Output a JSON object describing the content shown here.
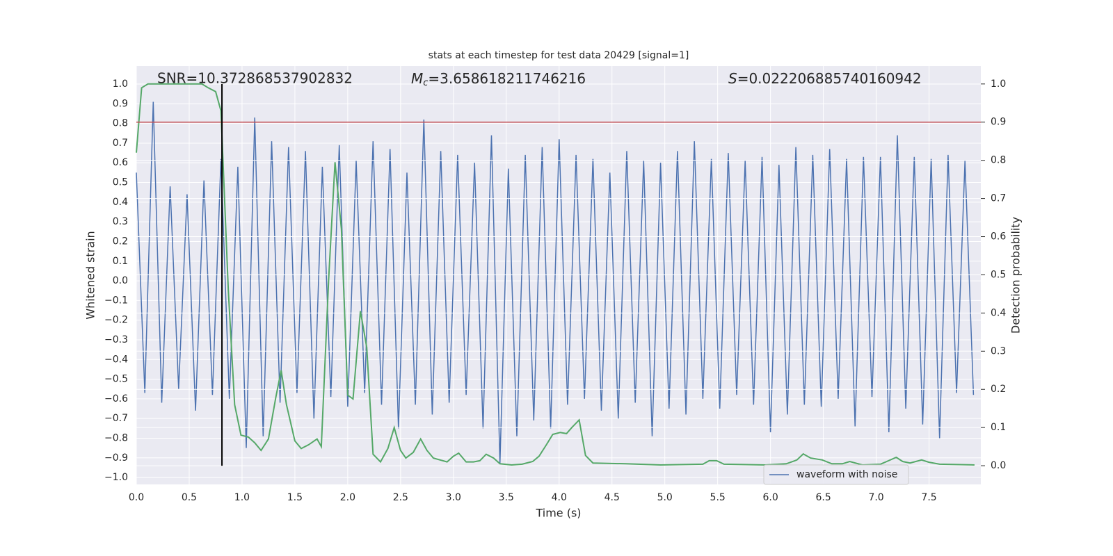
{
  "chart_data": {
    "type": "line",
    "title": "stats at each timestep for test data 20429 [signal=1]",
    "xlabel": "Time (s)",
    "ylabel": "Whitened strain",
    "y2label": "Detection probability",
    "annotations": {
      "snr": "SNR=10.372868537902832",
      "mc": {
        "symbol": "M",
        "subscript": "c",
        "text": "=3.658618211746216"
      },
      "s": {
        "symbol": "S",
        "text": "=0.022206885740160942"
      }
    },
    "xlim": [
      0,
      7.99
    ],
    "ylim": [
      -1.035,
      1.092
    ],
    "y2lim": [
      -0.049,
      1.047
    ],
    "xticks": [
      {
        "value": 0,
        "label": "0.0"
      },
      {
        "value": 0.5,
        "label": "0.5"
      },
      {
        "value": 1,
        "label": "1.0"
      },
      {
        "value": 1.5,
        "label": "1.5"
      },
      {
        "value": 2,
        "label": "2.0"
      },
      {
        "value": 2.5,
        "label": "2.5"
      },
      {
        "value": 3,
        "label": "3.0"
      },
      {
        "value": 3.5,
        "label": "3.5"
      },
      {
        "value": 4,
        "label": "4.0"
      },
      {
        "value": 4.5,
        "label": "4.5"
      },
      {
        "value": 5,
        "label": "5.0"
      },
      {
        "value": 5.5,
        "label": "5.5"
      },
      {
        "value": 6,
        "label": "6.0"
      },
      {
        "value": 6.5,
        "label": "6.5"
      },
      {
        "value": 7,
        "label": "7.0"
      },
      {
        "value": 7.5,
        "label": "7.5"
      }
    ],
    "yticks": [
      {
        "value": -1,
        "label": "−1.0"
      },
      {
        "value": -0.9,
        "label": "−0.9"
      },
      {
        "value": -0.8,
        "label": "−0.8"
      },
      {
        "value": -0.7,
        "label": "−0.7"
      },
      {
        "value": -0.6,
        "label": "−0.6"
      },
      {
        "value": -0.5,
        "label": "−0.5"
      },
      {
        "value": -0.4,
        "label": "−0.4"
      },
      {
        "value": -0.3,
        "label": "−0.3"
      },
      {
        "value": -0.2,
        "label": "−0.2"
      },
      {
        "value": -0.1,
        "label": "−0.1"
      },
      {
        "value": 0,
        "label": "0.0"
      },
      {
        "value": 0.1,
        "label": "0.1"
      },
      {
        "value": 0.2,
        "label": "0.2"
      },
      {
        "value": 0.3,
        "label": "0.3"
      },
      {
        "value": 0.4,
        "label": "0.4"
      },
      {
        "value": 0.5,
        "label": "0.5"
      },
      {
        "value": 0.6,
        "label": "0.6"
      },
      {
        "value": 0.7,
        "label": "0.7"
      },
      {
        "value": 0.8,
        "label": "0.8"
      },
      {
        "value": 0.9,
        "label": "0.9"
      },
      {
        "value": 1,
        "label": "1.0"
      }
    ],
    "y2ticks": [
      {
        "value": 0,
        "label": "0.0"
      },
      {
        "value": 0.1,
        "label": "0.1"
      },
      {
        "value": 0.2,
        "label": "0.2"
      },
      {
        "value": 0.3,
        "label": "0.3"
      },
      {
        "value": 0.4,
        "label": "0.4"
      },
      {
        "value": 0.5,
        "label": "0.5"
      },
      {
        "value": 0.6,
        "label": "0.6"
      },
      {
        "value": 0.7,
        "label": "0.7"
      },
      {
        "value": 0.8,
        "label": "0.8"
      },
      {
        "value": 0.9,
        "label": "0.9"
      },
      {
        "value": 1,
        "label": "1.0"
      }
    ],
    "grid": true,
    "legend": "lower right",
    "series": [
      {
        "name": "waveform with noise",
        "color": "#4c72b0",
        "x": [
          0,
          0.08,
          0.16,
          0.24,
          0.32,
          0.4,
          0.48,
          0.56,
          0.64,
          0.72,
          0.8,
          0.88,
          0.96,
          1.04,
          1.12,
          1.2,
          1.28,
          1.36,
          1.44,
          1.52,
          1.6,
          1.68,
          1.76,
          1.84,
          1.92,
          2,
          2.08,
          2.16,
          2.24,
          2.32,
          2.4,
          2.48,
          2.56,
          2.64,
          2.72,
          2.8,
          2.88,
          2.96,
          3.04,
          3.12,
          3.2,
          3.28,
          3.36,
          3.44,
          3.52,
          3.6,
          3.68,
          3.76,
          3.84,
          3.92,
          4,
          4.08,
          4.16,
          4.24,
          4.32,
          4.4,
          4.48,
          4.56,
          4.64,
          4.72,
          4.8,
          4.88,
          4.96,
          5.04,
          5.12,
          5.2,
          5.28,
          5.36,
          5.44,
          5.52,
          5.6,
          5.68,
          5.76,
          5.84,
          5.92,
          6,
          6.08,
          6.16,
          6.24,
          6.32,
          6.4,
          6.48,
          6.56,
          6.64,
          6.72,
          6.8,
          6.88,
          6.96,
          7.04,
          7.12,
          7.2,
          7.28,
          7.36,
          7.44,
          7.52,
          7.6,
          7.68,
          7.76,
          7.84,
          7.92
        ],
        "values": [
          0.55,
          -0.57,
          0.91,
          -0.62,
          0.48,
          -0.55,
          0.44,
          -0.66,
          0.51,
          -0.58,
          0.62,
          -0.6,
          0.58,
          -0.85,
          0.83,
          -0.79,
          0.71,
          -0.62,
          0.68,
          -0.57,
          0.66,
          -0.7,
          0.58,
          -0.59,
          0.69,
          -0.64,
          0.61,
          -0.57,
          0.71,
          -0.63,
          0.67,
          -0.75,
          0.55,
          -0.63,
          0.82,
          -0.68,
          0.66,
          -0.62,
          0.64,
          -0.58,
          0.6,
          -0.75,
          0.74,
          -0.93,
          0.57,
          -0.79,
          0.64,
          -0.71,
          0.68,
          -0.75,
          0.72,
          -0.63,
          0.64,
          -0.6,
          0.62,
          -0.66,
          0.55,
          -0.7,
          0.66,
          -0.62,
          0.61,
          -0.79,
          0.6,
          -0.65,
          0.66,
          -0.68,
          0.71,
          -0.6,
          0.62,
          -0.65,
          0.65,
          -0.58,
          0.61,
          -0.63,
          0.63,
          -0.77,
          0.59,
          -0.68,
          0.68,
          -0.63,
          0.64,
          -0.64,
          0.67,
          -0.6,
          0.62,
          -0.74,
          0.63,
          -0.59,
          0.63,
          -0.77,
          0.74,
          -0.65,
          0.63,
          -0.73,
          0.62,
          -0.8,
          0.64,
          -0.57,
          0.61,
          -0.58
        ]
      },
      {
        "color": "#55a868",
        "axis": "y2",
        "x": [
          0,
          0.05,
          0.11,
          0.62,
          0.68,
          0.75,
          0.8,
          0.87,
          0.93,
          0.99,
          1.06,
          1.12,
          1.18,
          1.25,
          1.32,
          1.37,
          1.42,
          1.5,
          1.56,
          1.63,
          1.71,
          1.75,
          1.82,
          1.88,
          1.94,
          2,
          2.05,
          2.12,
          2.18,
          2.24,
          2.31,
          2.38,
          2.44,
          2.5,
          2.55,
          2.62,
          2.69,
          2.75,
          2.81,
          2.94,
          3,
          3.05,
          3.12,
          3.19,
          3.25,
          3.31,
          3.38,
          3.44,
          3.55,
          3.65,
          3.75,
          3.81,
          3.88,
          3.94,
          4.01,
          4.07,
          4.12,
          4.19,
          4.25,
          4.32,
          4.63,
          4.96,
          5.36,
          5.42,
          5.49,
          5.56,
          5.95,
          6.15,
          6.25,
          6.31,
          6.38,
          6.49,
          6.58,
          6.68,
          6.75,
          6.87,
          7.04,
          7.1,
          7.19,
          7.25,
          7.32,
          7.43,
          7.5,
          7.6,
          7.93
        ],
        "values": [
          0.82,
          0.99,
          1,
          1,
          0.99,
          0.98,
          0.93,
          0.46,
          0.16,
          0.08,
          0.075,
          0.06,
          0.04,
          0.07,
          0.18,
          0.25,
          0.16,
          0.065,
          0.045,
          0.055,
          0.07,
          0.05,
          0.49,
          0.795,
          0.62,
          0.185,
          0.175,
          0.405,
          0.31,
          0.03,
          0.01,
          0.045,
          0.1,
          0.04,
          0.02,
          0.035,
          0.07,
          0.04,
          0.02,
          0.01,
          0.025,
          0.033,
          0.01,
          0.01,
          0.013,
          0.03,
          0.02,
          0.005,
          0.002,
          0.004,
          0.011,
          0.025,
          0.055,
          0.082,
          0.087,
          0.084,
          0.1,
          0.12,
          0.027,
          0.007,
          0.005,
          0.002,
          0.004,
          0.013,
          0.013,
          0.004,
          0.002,
          0.005,
          0.015,
          0.031,
          0.02,
          0.015,
          0.005,
          0.005,
          0.011,
          0.002,
          0.004,
          0.011,
          0.022,
          0.011,
          0.007,
          0.015,
          0.009,
          0.004,
          0.002
        ]
      }
    ],
    "threshold_line": {
      "value": 0.9,
      "axis": "y2",
      "color": "#c44e52"
    },
    "marker_line": {
      "x": 0.81,
      "y": [
        -0.94,
        1.0
      ],
      "color": "#000000"
    }
  }
}
